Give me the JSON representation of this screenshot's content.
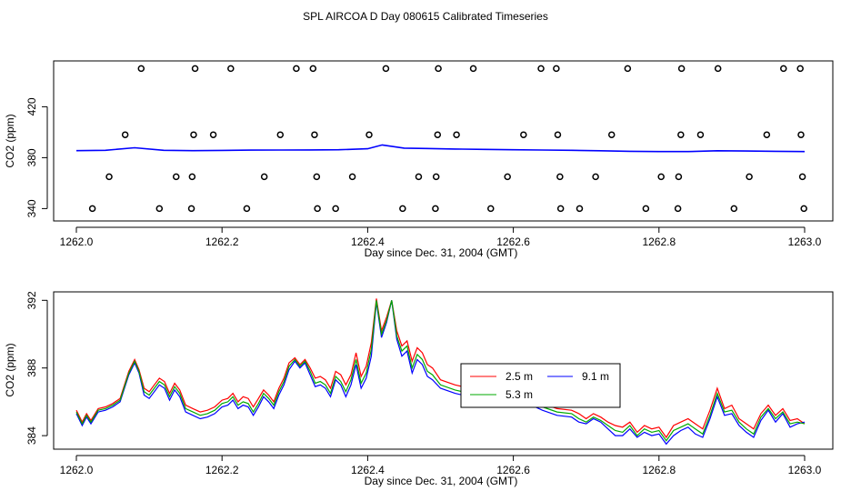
{
  "page_title": "SPL AIRCOA D  Day 080615  Calibrated Timeseries",
  "chart_data": [
    {
      "type": "scatter+line",
      "xlabel": "Day since Dec. 31, 2004 (GMT)",
      "ylabel": "CO2 (ppm)",
      "xlim": [
        1262.0,
        1263.0
      ],
      "ylim": [
        336,
        456
      ],
      "x_ticks": [
        1262.0,
        1262.2,
        1262.4,
        1262.6,
        1262.8,
        1263.0
      ],
      "x_tick_labels": [
        "1262.0",
        "1262.2",
        "1262.4",
        "1262.6",
        "1262.8",
        "1263.0"
      ],
      "y_ticks": [
        340,
        380,
        420
      ],
      "y_tick_labels": [
        "340",
        "380",
        "420"
      ],
      "grid": false,
      "legend": "none",
      "points": [
        {
          "x": 1262.089,
          "y": 450
        },
        {
          "x": 1262.163,
          "y": 450
        },
        {
          "x": 1262.212,
          "y": 450
        },
        {
          "x": 1262.302,
          "y": 450
        },
        {
          "x": 1262.325,
          "y": 450
        },
        {
          "x": 1262.425,
          "y": 450
        },
        {
          "x": 1262.497,
          "y": 450
        },
        {
          "x": 1262.545,
          "y": 450
        },
        {
          "x": 1262.638,
          "y": 450
        },
        {
          "x": 1262.659,
          "y": 450
        },
        {
          "x": 1262.757,
          "y": 450
        },
        {
          "x": 1262.831,
          "y": 450
        },
        {
          "x": 1262.881,
          "y": 450
        },
        {
          "x": 1262.971,
          "y": 450
        },
        {
          "x": 1262.994,
          "y": 450
        },
        {
          "x": 1262.067,
          "y": 398
        },
        {
          "x": 1262.161,
          "y": 398
        },
        {
          "x": 1262.188,
          "y": 398
        },
        {
          "x": 1262.28,
          "y": 398
        },
        {
          "x": 1262.327,
          "y": 398
        },
        {
          "x": 1262.402,
          "y": 398
        },
        {
          "x": 1262.496,
          "y": 398
        },
        {
          "x": 1262.522,
          "y": 398
        },
        {
          "x": 1262.614,
          "y": 398
        },
        {
          "x": 1262.661,
          "y": 398
        },
        {
          "x": 1262.735,
          "y": 398
        },
        {
          "x": 1262.83,
          "y": 398
        },
        {
          "x": 1262.857,
          "y": 398
        },
        {
          "x": 1262.948,
          "y": 398
        },
        {
          "x": 1262.995,
          "y": 398
        },
        {
          "x": 1262.045,
          "y": 365
        },
        {
          "x": 1262.137,
          "y": 365
        },
        {
          "x": 1262.159,
          "y": 365
        },
        {
          "x": 1262.258,
          "y": 365
        },
        {
          "x": 1262.33,
          "y": 365
        },
        {
          "x": 1262.379,
          "y": 365
        },
        {
          "x": 1262.47,
          "y": 365
        },
        {
          "x": 1262.494,
          "y": 365
        },
        {
          "x": 1262.592,
          "y": 365
        },
        {
          "x": 1262.664,
          "y": 365
        },
        {
          "x": 1262.713,
          "y": 365
        },
        {
          "x": 1262.803,
          "y": 365
        },
        {
          "x": 1262.827,
          "y": 365
        },
        {
          "x": 1262.924,
          "y": 365
        },
        {
          "x": 1262.997,
          "y": 365
        },
        {
          "x": 1262.022,
          "y": 340
        },
        {
          "x": 1262.114,
          "y": 340
        },
        {
          "x": 1262.158,
          "y": 340
        },
        {
          "x": 1262.234,
          "y": 340
        },
        {
          "x": 1262.331,
          "y": 340
        },
        {
          "x": 1262.356,
          "y": 340
        },
        {
          "x": 1262.448,
          "y": 340
        },
        {
          "x": 1262.493,
          "y": 340
        },
        {
          "x": 1262.569,
          "y": 340
        },
        {
          "x": 1262.665,
          "y": 340
        },
        {
          "x": 1262.691,
          "y": 340
        },
        {
          "x": 1262.782,
          "y": 340
        },
        {
          "x": 1262.826,
          "y": 340
        },
        {
          "x": 1262.903,
          "y": 340
        },
        {
          "x": 1262.999,
          "y": 340
        }
      ],
      "line": {
        "x": [
          1262.0,
          1262.04,
          1262.08,
          1262.12,
          1262.16,
          1262.2,
          1262.24,
          1262.28,
          1262.32,
          1262.36,
          1262.4,
          1262.42,
          1262.45,
          1262.48,
          1262.52,
          1262.56,
          1262.6,
          1262.64,
          1262.68,
          1262.72,
          1262.76,
          1262.8,
          1262.84,
          1262.88,
          1262.92,
          1262.96,
          1263.0
        ],
        "y": [
          385.5,
          385.8,
          387.8,
          385.8,
          385.5,
          385.7,
          385.9,
          386.0,
          386.1,
          386.2,
          387.0,
          390.0,
          387.5,
          387.2,
          386.8,
          386.5,
          386.2,
          386.0,
          385.8,
          385.4,
          385.0,
          384.8,
          384.8,
          385.4,
          385.2,
          385.0,
          384.8
        ]
      },
      "line_color": "#0000ff"
    },
    {
      "type": "line",
      "xlabel": "Day since Dec. 31, 2004 (GMT)",
      "ylabel": "CO2 (ppm)",
      "xlim": [
        1262.0,
        1263.0
      ],
      "ylim": [
        383.2,
        392.5
      ],
      "x_ticks": [
        1262.0,
        1262.2,
        1262.4,
        1262.6,
        1262.8,
        1263.0
      ],
      "x_tick_labels": [
        "1262.0",
        "1262.2",
        "1262.4",
        "1262.6",
        "1262.8",
        "1263.0"
      ],
      "y_ticks": [
        384,
        388,
        392
      ],
      "y_tick_labels": [
        "384",
        "388",
        "392"
      ],
      "grid": false,
      "legend": "center-right",
      "x": [
        1262.0,
        1262.008,
        1262.014,
        1262.02,
        1262.03,
        1262.04,
        1262.05,
        1262.06,
        1262.066,
        1262.072,
        1262.08,
        1262.086,
        1262.093,
        1262.1,
        1262.107,
        1262.114,
        1262.121,
        1262.128,
        1262.135,
        1262.142,
        1262.15,
        1262.16,
        1262.17,
        1262.18,
        1262.19,
        1262.2,
        1262.208,
        1262.215,
        1262.222,
        1262.229,
        1262.236,
        1262.243,
        1262.25,
        1262.257,
        1262.264,
        1262.271,
        1262.278,
        1262.285,
        1262.292,
        1262.3,
        1262.307,
        1262.314,
        1262.321,
        1262.328,
        1262.335,
        1262.342,
        1262.349,
        1262.356,
        1262.363,
        1262.37,
        1262.377,
        1262.384,
        1262.391,
        1262.398,
        1262.405,
        1262.412,
        1262.419,
        1262.426,
        1262.433,
        1262.44,
        1262.447,
        1262.454,
        1262.461,
        1262.468,
        1262.475,
        1262.482,
        1262.489,
        1262.5,
        1262.52,
        1262.54,
        1262.56,
        1262.58,
        1262.6,
        1262.62,
        1262.64,
        1262.66,
        1262.68,
        1262.69,
        1262.7,
        1262.71,
        1262.72,
        1262.73,
        1262.74,
        1262.75,
        1262.76,
        1262.77,
        1262.78,
        1262.79,
        1262.8,
        1262.81,
        1262.82,
        1262.83,
        1262.84,
        1262.85,
        1262.86,
        1262.87,
        1262.88,
        1262.89,
        1262.9,
        1262.91,
        1262.92,
        1262.93,
        1262.94,
        1262.95,
        1262.96,
        1262.97,
        1262.98,
        1262.99,
        1263.0
      ],
      "series": [
        {
          "name": "2.5 m",
          "color": "#ff0000",
          "values": [
            385.5,
            384.8,
            385.3,
            384.9,
            385.6,
            385.7,
            385.9,
            386.2,
            387.0,
            387.8,
            388.5,
            387.9,
            386.8,
            386.6,
            387.0,
            387.4,
            387.2,
            386.5,
            387.1,
            386.7,
            385.8,
            385.6,
            385.4,
            385.5,
            385.7,
            386.1,
            386.2,
            386.5,
            386.0,
            386.3,
            386.2,
            385.7,
            386.2,
            386.7,
            386.4,
            386.0,
            386.8,
            387.4,
            388.3,
            388.6,
            388.2,
            388.5,
            388.0,
            387.4,
            387.5,
            387.3,
            386.8,
            387.8,
            387.6,
            387.0,
            387.6,
            388.9,
            387.5,
            388.1,
            389.5,
            392.1,
            390.2,
            391.0,
            392.0,
            390.2,
            389.3,
            389.6,
            388.4,
            389.2,
            388.9,
            388.2,
            388.0,
            387.3,
            387.0,
            386.8,
            386.5,
            386.2,
            386.1,
            386.2,
            385.9,
            385.6,
            385.5,
            385.3,
            385.0,
            385.3,
            385.1,
            384.8,
            384.6,
            384.5,
            384.8,
            384.2,
            384.6,
            384.4,
            384.5,
            383.9,
            384.6,
            384.8,
            385.0,
            384.7,
            384.4,
            385.5,
            386.8,
            385.6,
            385.8,
            385.0,
            384.7,
            384.4,
            385.3,
            385.8,
            385.2,
            385.6,
            384.9,
            385.0,
            384.7
          ]
        },
        {
          "name": "9.1 m",
          "color": "#0000ff",
          "values": [
            385.3,
            384.6,
            385.1,
            384.7,
            385.4,
            385.5,
            385.7,
            386.0,
            386.8,
            387.6,
            388.3,
            387.7,
            386.4,
            386.2,
            386.6,
            387.0,
            386.8,
            386.1,
            386.7,
            386.3,
            385.4,
            385.2,
            385.0,
            385.1,
            385.3,
            385.7,
            385.8,
            386.1,
            385.6,
            385.8,
            385.7,
            385.2,
            385.7,
            386.3,
            386.0,
            385.6,
            386.4,
            387.0,
            387.9,
            388.4,
            388.0,
            388.3,
            387.6,
            386.9,
            387.0,
            386.8,
            386.3,
            387.3,
            387.0,
            386.3,
            387.0,
            388.2,
            386.8,
            387.4,
            388.7,
            391.9,
            389.8,
            390.7,
            392.0,
            389.7,
            388.7,
            389.0,
            387.7,
            388.5,
            388.2,
            387.5,
            387.3,
            386.8,
            386.5,
            386.3,
            386.1,
            385.9,
            385.8,
            385.9,
            385.5,
            385.2,
            385.1,
            384.8,
            384.7,
            385.0,
            384.8,
            384.4,
            384.0,
            384.0,
            384.4,
            383.9,
            384.2,
            384.0,
            384.1,
            383.5,
            384.0,
            384.3,
            384.5,
            384.1,
            383.9,
            385.0,
            386.3,
            385.2,
            385.3,
            384.6,
            384.2,
            383.9,
            384.9,
            385.5,
            384.8,
            385.3,
            384.5,
            384.7,
            384.8
          ]
        },
        {
          "name": "5.3 m",
          "color": "#00aa00",
          "values": [
            385.4,
            384.7,
            385.2,
            384.8,
            385.5,
            385.6,
            385.8,
            386.1,
            386.9,
            387.7,
            388.4,
            387.8,
            386.6,
            386.4,
            386.8,
            387.2,
            387.0,
            386.3,
            386.9,
            386.5,
            385.6,
            385.4,
            385.2,
            385.3,
            385.5,
            385.9,
            386.0,
            386.3,
            385.8,
            386.0,
            385.9,
            385.4,
            385.9,
            386.5,
            386.2,
            385.8,
            386.6,
            387.2,
            388.1,
            388.5,
            388.1,
            388.4,
            387.8,
            387.1,
            387.2,
            387.0,
            386.5,
            387.5,
            387.2,
            386.6,
            387.3,
            388.5,
            387.1,
            387.7,
            389.1,
            392.0,
            390.0,
            390.8,
            392.0,
            389.9,
            389.0,
            389.3,
            388.0,
            388.8,
            388.5,
            387.8,
            387.6,
            387.0,
            386.7,
            386.5,
            386.3,
            386.0,
            385.9,
            386.0,
            385.7,
            385.4,
            385.3,
            385.0,
            384.8,
            385.1,
            384.9,
            384.6,
            384.3,
            384.2,
            384.6,
            384.0,
            384.4,
            384.2,
            384.3,
            383.7,
            384.3,
            384.5,
            384.7,
            384.4,
            384.1,
            385.2,
            386.5,
            385.4,
            385.5,
            384.8,
            384.4,
            384.1,
            385.1,
            385.6,
            385.0,
            385.4,
            384.7,
            384.8,
            384.7
          ]
        }
      ]
    }
  ]
}
